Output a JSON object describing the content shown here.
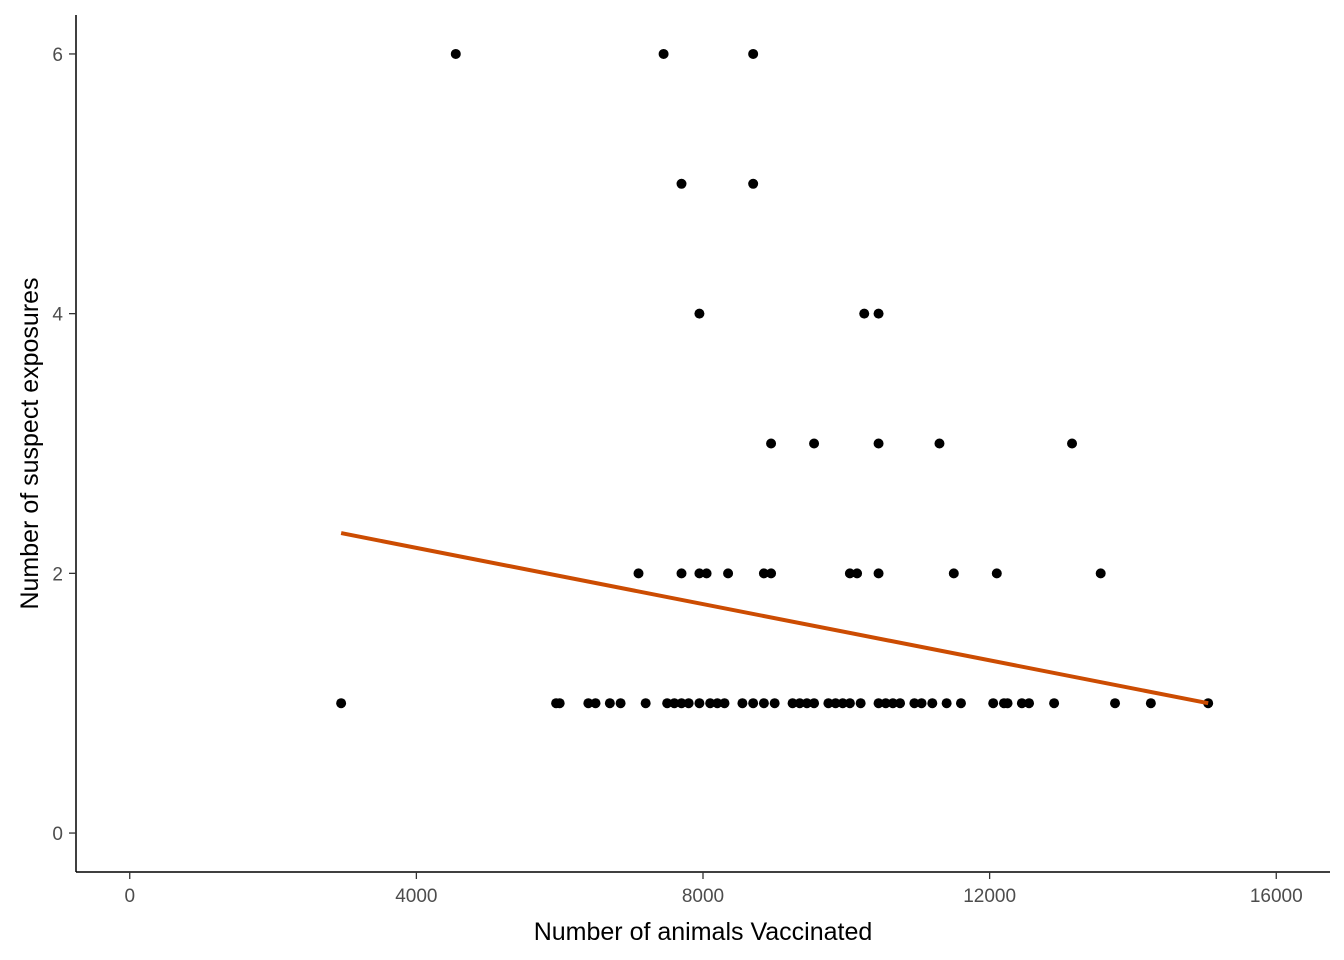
{
  "chart_data": {
    "type": "scatter",
    "title": "",
    "xlabel": "Number of animals Vaccinated",
    "ylabel": "Number of suspect exposures",
    "xlim": [
      -750,
      16750
    ],
    "ylim": [
      -0.3,
      6.3
    ],
    "x_ticks": [
      0,
      4000,
      8000,
      12000,
      16000
    ],
    "x_tick_labels": [
      "0",
      "4000",
      "8000",
      "12000",
      "16000"
    ],
    "y_ticks": [
      0,
      2,
      4,
      6
    ],
    "y_tick_labels": [
      "0",
      "2",
      "4",
      "6"
    ],
    "grid": false,
    "legend": "none",
    "point_color": "#000000",
    "trend_color": "#cc4c02",
    "points": [
      [
        2950,
        1
      ],
      [
        5950,
        1
      ],
      [
        6000,
        1
      ],
      [
        6400,
        1
      ],
      [
        6500,
        1
      ],
      [
        6700,
        1
      ],
      [
        6850,
        1
      ],
      [
        7200,
        1
      ],
      [
        7500,
        1
      ],
      [
        7600,
        1
      ],
      [
        7700,
        1
      ],
      [
        7800,
        1
      ],
      [
        7950,
        1
      ],
      [
        8100,
        1
      ],
      [
        8200,
        1
      ],
      [
        8300,
        1
      ],
      [
        8550,
        1
      ],
      [
        8700,
        1
      ],
      [
        8850,
        1
      ],
      [
        9000,
        1
      ],
      [
        9250,
        1
      ],
      [
        9350,
        1
      ],
      [
        9450,
        1
      ],
      [
        9550,
        1
      ],
      [
        9750,
        1
      ],
      [
        9850,
        1
      ],
      [
        9950,
        1
      ],
      [
        10050,
        1
      ],
      [
        10200,
        1
      ],
      [
        10450,
        1
      ],
      [
        10550,
        1
      ],
      [
        10650,
        1
      ],
      [
        10750,
        1
      ],
      [
        10950,
        1
      ],
      [
        11050,
        1
      ],
      [
        11200,
        1
      ],
      [
        11400,
        1
      ],
      [
        11600,
        1
      ],
      [
        12050,
        1
      ],
      [
        12200,
        1
      ],
      [
        12250,
        1
      ],
      [
        12450,
        1
      ],
      [
        12550,
        1
      ],
      [
        12900,
        1
      ],
      [
        13750,
        1
      ],
      [
        14250,
        1
      ],
      [
        15050,
        1
      ],
      [
        7100,
        2
      ],
      [
        7700,
        2
      ],
      [
        7950,
        2
      ],
      [
        8050,
        2
      ],
      [
        8350,
        2
      ],
      [
        8850,
        2
      ],
      [
        8950,
        2
      ],
      [
        10050,
        2
      ],
      [
        10150,
        2
      ],
      [
        10450,
        2
      ],
      [
        11500,
        2
      ],
      [
        12100,
        2
      ],
      [
        13550,
        2
      ],
      [
        8950,
        3
      ],
      [
        9550,
        3
      ],
      [
        10450,
        3
      ],
      [
        11300,
        3
      ],
      [
        13150,
        3
      ],
      [
        7950,
        4
      ],
      [
        10250,
        4
      ],
      [
        10450,
        4
      ],
      [
        7700,
        5
      ],
      [
        8700,
        5
      ],
      [
        4550,
        6
      ],
      [
        7450,
        6
      ],
      [
        8700,
        6
      ]
    ],
    "trend_line": {
      "x": [
        2950,
        15050
      ],
      "y": [
        2.31,
        1.0
      ]
    }
  }
}
